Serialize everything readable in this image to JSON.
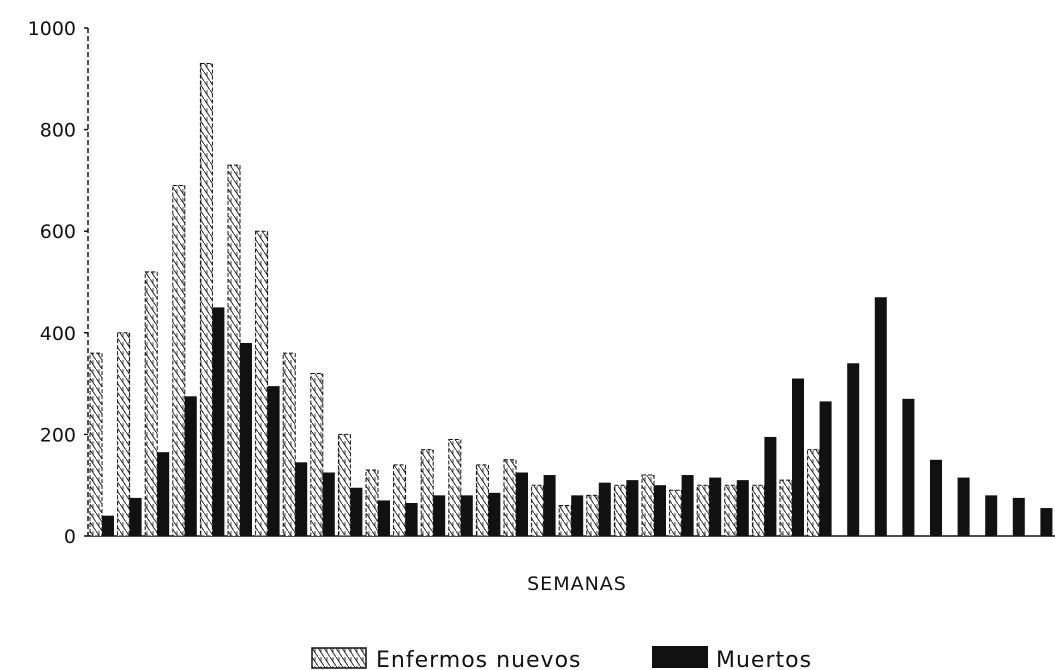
{
  "chart_data": {
    "type": "bar",
    "xlabel": "SEMANAS",
    "ylabel": "",
    "ylim": [
      0,
      1000
    ],
    "yticks": [
      0,
      200,
      400,
      600,
      800,
      1000
    ],
    "ytick_labels": [
      "0",
      "200",
      "400",
      "600",
      "800",
      "1000"
    ],
    "grid": false,
    "legend_position": "bottom-center",
    "series": [
      {
        "name": "Enfermos nuevos",
        "style": "hatched",
        "color": "#ffffff",
        "values": [
          360,
          400,
          520,
          690,
          930,
          730,
          600,
          360,
          320,
          200,
          130,
          140,
          170,
          190,
          140,
          150,
          100,
          60,
          80,
          100,
          120,
          90,
          100,
          100,
          100,
          110,
          170
        ]
      },
      {
        "name": "Muertos",
        "style": "solid",
        "color": "#111111",
        "values": [
          40,
          75,
          165,
          275,
          450,
          380,
          295,
          145,
          125,
          95,
          70,
          65,
          80,
          80,
          85,
          125,
          120,
          80,
          105,
          110,
          100,
          120,
          115,
          110,
          195,
          310,
          265,
          340,
          470,
          270,
          150,
          115,
          80,
          75,
          55
        ]
      }
    ]
  }
}
